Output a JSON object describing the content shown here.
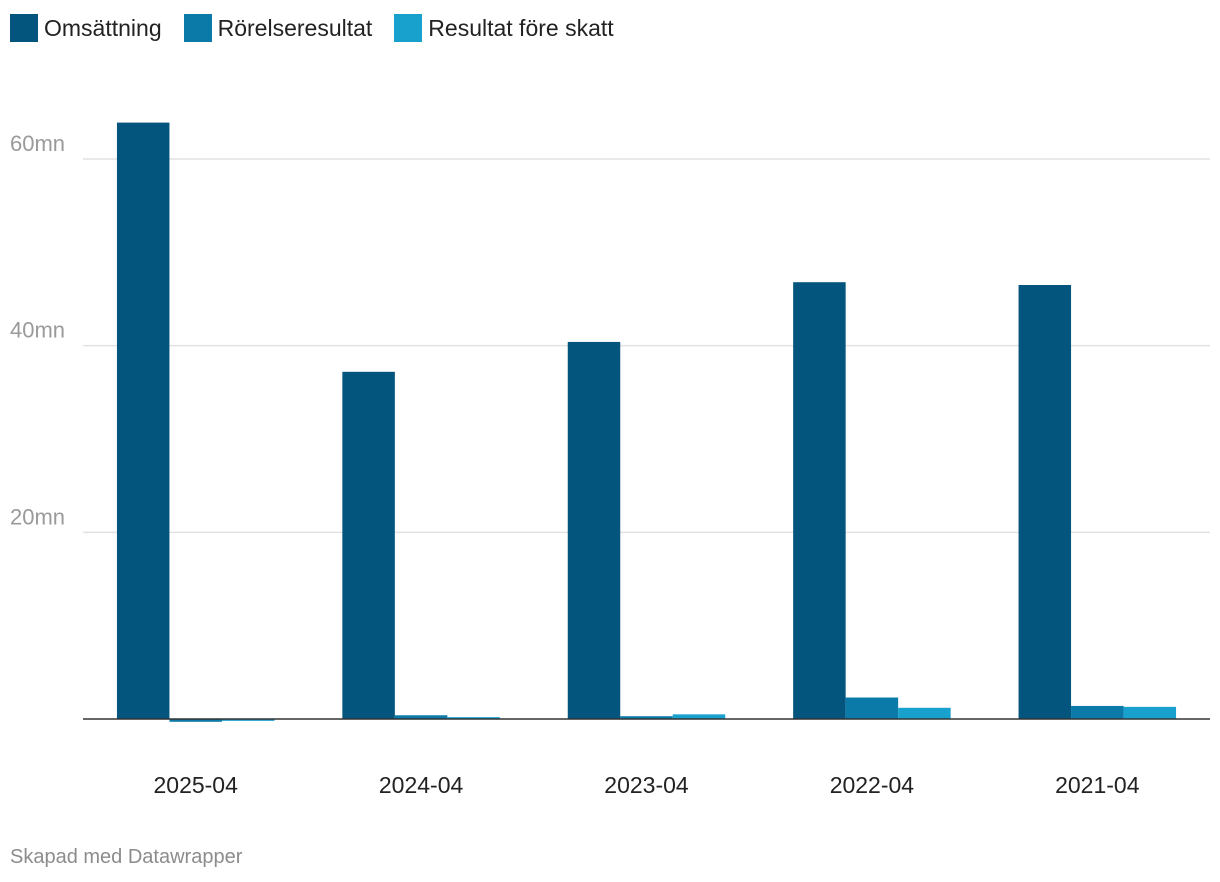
{
  "chart_data": {
    "type": "bar",
    "categories": [
      "2025-04",
      "2024-04",
      "2023-04",
      "2022-04",
      "2021-04"
    ],
    "series": [
      {
        "name": "Omsättning",
        "color": "#03557d",
        "values": [
          63.9,
          37.2,
          40.4,
          46.8,
          46.5
        ]
      },
      {
        "name": "Rörelseresultat",
        "color": "#0b7aa8",
        "values": [
          -0.3,
          0.4,
          0.3,
          2.3,
          1.4
        ]
      },
      {
        "name": "Resultat före skatt",
        "color": "#19a1ce",
        "values": [
          -0.2,
          0.2,
          0.5,
          1.2,
          1.3
        ]
      }
    ],
    "yticks": [
      20,
      40,
      60
    ],
    "ytick_labels": [
      "20mn",
      "40mn",
      "60mn"
    ],
    "ylim": [
      -0.5,
      66
    ],
    "unit": "mn",
    "grid": true,
    "legend_position": "top-left"
  },
  "footer": {
    "credit": "Skapad med Datawrapper"
  }
}
